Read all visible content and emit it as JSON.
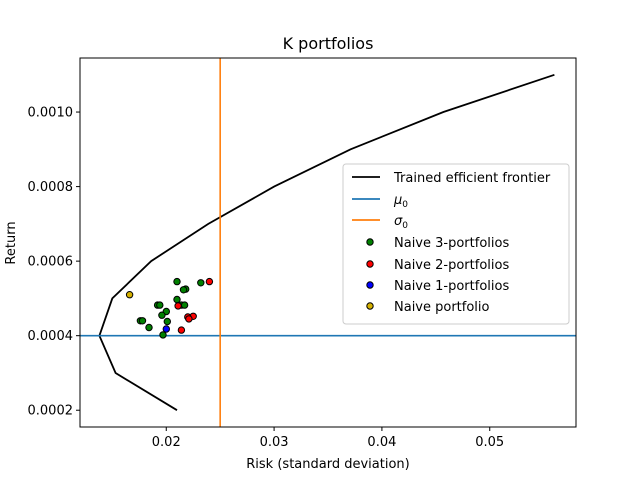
{
  "chart_data": {
    "type": "scatter",
    "title": "K portfolios",
    "xlabel": "Risk (standard deviation)",
    "ylabel": "Return",
    "xlim": [
      0.012,
      0.058
    ],
    "ylim": [
      0.000155,
      0.001145
    ],
    "x_ticks": [
      0.02,
      0.03,
      0.04,
      0.05
    ],
    "x_tick_labels": [
      "0.02",
      "0.03",
      "0.04",
      "0.05"
    ],
    "y_ticks": [
      0.0002,
      0.0004,
      0.0006,
      0.0008,
      0.001
    ],
    "y_tick_labels": [
      "0.0002",
      "0.0004",
      "0.0006",
      "0.0008",
      "0.0010"
    ],
    "grid": false,
    "legend_position": "center-right",
    "frontier": {
      "name": "Trained efficient frontier",
      "color": "#000000",
      "points": [
        [
          0.021,
          0.0002
        ],
        [
          0.0153,
          0.0003
        ],
        [
          0.0138,
          0.0004
        ],
        [
          0.015,
          0.0005
        ],
        [
          0.0186,
          0.0006
        ],
        [
          0.0239,
          0.0007
        ],
        [
          0.03,
          0.0008
        ],
        [
          0.0371,
          0.0009
        ],
        [
          0.0457,
          0.001
        ],
        [
          0.056,
          0.0011
        ]
      ]
    },
    "mu0": {
      "label": "μ",
      "sub": "0",
      "value": 0.0004,
      "color": "#1f77b4"
    },
    "sigma0": {
      "label": "σ",
      "sub": "0",
      "value": 0.025,
      "color": "#ff7f0e"
    },
    "series": [
      {
        "name": "Naive 3-portfolios",
        "color": "#008000",
        "points": [
          [
            0.021,
            0.000545
          ],
          [
            0.0232,
            0.000542
          ],
          [
            0.0218,
            0.000525
          ],
          [
            0.0216,
            0.000523
          ],
          [
            0.021,
            0.000497
          ],
          [
            0.0214,
            0.000482
          ],
          [
            0.0217,
            0.000482
          ],
          [
            0.0192,
            0.000482
          ],
          [
            0.0194,
            0.000482
          ],
          [
            0.02,
            0.000465
          ],
          [
            0.0196,
            0.000455
          ],
          [
            0.0176,
            0.00044
          ],
          [
            0.0178,
            0.00044
          ],
          [
            0.0201,
            0.000438
          ],
          [
            0.0184,
            0.000422
          ],
          [
            0.0197,
            0.000402
          ]
        ]
      },
      {
        "name": "Naive 2-portfolios",
        "color": "#ff0000",
        "points": [
          [
            0.024,
            0.000545
          ],
          [
            0.0211,
            0.00048
          ],
          [
            0.0225,
            0.000452
          ],
          [
            0.022,
            0.00045
          ],
          [
            0.0221,
            0.000445
          ],
          [
            0.0214,
            0.000415
          ]
        ]
      },
      {
        "name": "Naive 1-portfolios",
        "color": "#0000ff",
        "points": [
          [
            0.02,
            0.000418
          ]
        ]
      },
      {
        "name": "Naive portfolio",
        "color": "#d4b000",
        "points": [
          [
            0.0166,
            0.00051
          ]
        ]
      }
    ]
  }
}
